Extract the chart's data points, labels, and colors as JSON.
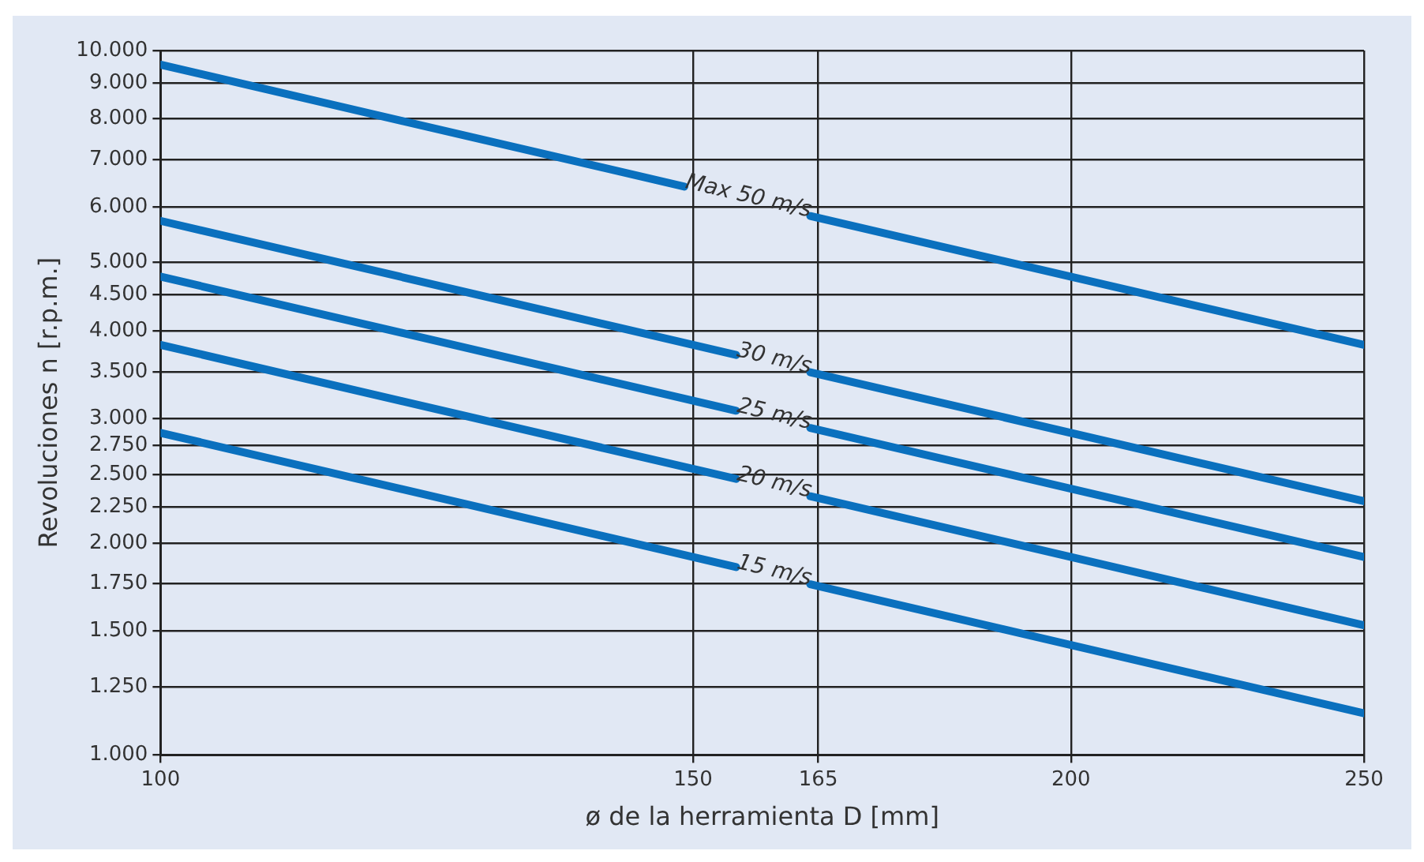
{
  "chart_data": {
    "type": "line",
    "xlabel": "ø de la herramienta D [mm]",
    "ylabel": "Revoluciones n [r.p.m.]",
    "log": "xy",
    "grid": true,
    "legend": false,
    "marker": "none",
    "line_style": "solid",
    "xlim": [
      100,
      250
    ],
    "xticks": [
      100,
      150,
      165,
      200,
      250
    ],
    "ylim": [
      1000,
      10000
    ],
    "yticks": [
      {
        "value": 1000,
        "label": "1.000"
      },
      {
        "value": 1250,
        "label": "1.250"
      },
      {
        "value": 1500,
        "label": "1.500"
      },
      {
        "value": 1750,
        "label": "1.750"
      },
      {
        "value": 2000,
        "label": "2.000"
      },
      {
        "value": 2250,
        "label": "2.250"
      },
      {
        "value": 2500,
        "label": "2.500"
      },
      {
        "value": 2750,
        "label": "2.750"
      },
      {
        "value": 3000,
        "label": "3.000"
      },
      {
        "value": 3500,
        "label": "3.500"
      },
      {
        "value": 4000,
        "label": "4.000"
      },
      {
        "value": 4500,
        "label": "4.500"
      },
      {
        "value": 5000,
        "label": "5.000"
      },
      {
        "value": 6000,
        "label": "6.000"
      },
      {
        "value": 7000,
        "label": "7.000"
      },
      {
        "value": 8000,
        "label": "8.000"
      },
      {
        "value": 9000,
        "label": "9.000"
      },
      {
        "value": 10000,
        "label": "10.000"
      }
    ],
    "series": [
      {
        "name": "Max 50 m/s",
        "color": "#0a70be",
        "x": [
          100,
          149,
          156,
          164,
          250
        ],
        "values": [
          9549,
          6409,
          null,
          5822,
          3820
        ]
      },
      {
        "name": "30 m/s",
        "color": "#0a70be",
        "x": [
          100,
          155,
          160,
          164,
          250
        ],
        "values": [
          5730,
          3697,
          null,
          3494,
          2292
        ]
      },
      {
        "name": "25 m/s",
        "color": "#0a70be",
        "x": [
          100,
          155,
          160,
          164,
          250
        ],
        "values": [
          4775,
          3081,
          null,
          2912,
          1910
        ]
      },
      {
        "name": "20 m/s",
        "color": "#0a70be",
        "x": [
          100,
          155,
          160,
          164,
          250
        ],
        "values": [
          3820,
          2465,
          null,
          2329,
          1528
        ]
      },
      {
        "name": "15 m/s",
        "color": "#0a70be",
        "x": [
          100,
          155,
          160,
          164,
          250
        ],
        "values": [
          2865,
          1848,
          null,
          1747,
          1146
        ]
      }
    ]
  }
}
